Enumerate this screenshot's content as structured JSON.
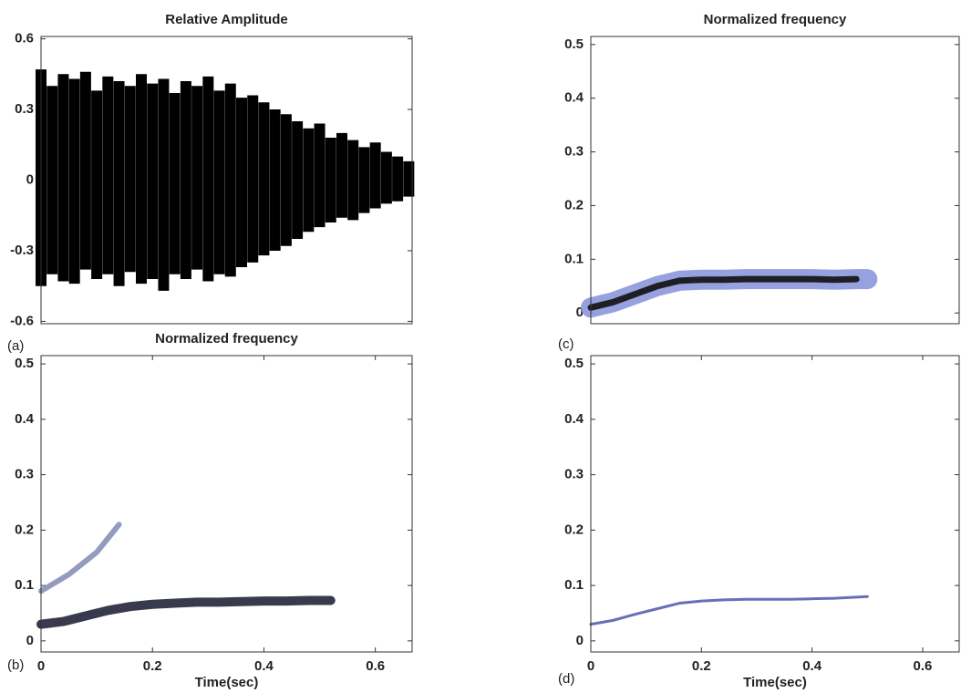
{
  "chart_data": [
    {
      "type": "envelope",
      "title": "Relative Amplitude",
      "panel_label": "(a)",
      "color": "#000000",
      "xlim": [
        0,
        0.666
      ],
      "ylim": [
        -0.61,
        0.61
      ],
      "yticks": [
        0.6,
        0.3,
        0,
        -0.3,
        -0.6
      ],
      "x": [
        0,
        0.02,
        0.04,
        0.06,
        0.08,
        0.1,
        0.12,
        0.14,
        0.16,
        0.18,
        0.2,
        0.22,
        0.24,
        0.26,
        0.28,
        0.3,
        0.32,
        0.34,
        0.36,
        0.38,
        0.4,
        0.42,
        0.44,
        0.46,
        0.48,
        0.5,
        0.52,
        0.54,
        0.56,
        0.58,
        0.6,
        0.62,
        0.64,
        0.66
      ],
      "high": [
        0.47,
        0.4,
        0.45,
        0.43,
        0.46,
        0.38,
        0.44,
        0.42,
        0.4,
        0.45,
        0.41,
        0.43,
        0.37,
        0.42,
        0.4,
        0.44,
        0.38,
        0.41,
        0.35,
        0.36,
        0.33,
        0.3,
        0.28,
        0.25,
        0.22,
        0.24,
        0.18,
        0.2,
        0.17,
        0.14,
        0.16,
        0.12,
        0.1,
        0.08
      ],
      "low": [
        -0.45,
        -0.4,
        -0.43,
        -0.44,
        -0.38,
        -0.42,
        -0.4,
        -0.45,
        -0.39,
        -0.44,
        -0.42,
        -0.47,
        -0.4,
        -0.42,
        -0.38,
        -0.43,
        -0.4,
        -0.41,
        -0.37,
        -0.35,
        -0.32,
        -0.3,
        -0.28,
        -0.25,
        -0.22,
        -0.2,
        -0.18,
        -0.16,
        -0.17,
        -0.14,
        -0.12,
        -0.1,
        -0.09,
        -0.07
      ]
    },
    {
      "type": "ridge",
      "title": "Normalized frequency",
      "panel_label": "(b)",
      "xlabel": "Time(sec)",
      "xlim": [
        0,
        0.666
      ],
      "ylim": [
        -0.02,
        0.515
      ],
      "xticks": [
        0,
        0.2,
        0.4,
        0.6
      ],
      "yticks": [
        0,
        0.1,
        0.2,
        0.3,
        0.4,
        0.5
      ],
      "series": [
        {
          "color": "#23253a",
          "width": 10,
          "x": [
            0,
            0.04,
            0.08,
            0.12,
            0.16,
            0.2,
            0.24,
            0.28,
            0.32,
            0.36,
            0.4,
            0.44,
            0.48,
            0.52
          ],
          "values": [
            0.03,
            0.035,
            0.045,
            0.055,
            0.062,
            0.066,
            0.068,
            0.07,
            0.07,
            0.071,
            0.072,
            0.072,
            0.073,
            0.073
          ]
        },
        {
          "color": "#8a90b8",
          "width": 6,
          "x": [
            0,
            0.05,
            0.1,
            0.14
          ],
          "values": [
            0.09,
            0.12,
            0.16,
            0.21
          ]
        }
      ]
    },
    {
      "type": "ridge",
      "title": "Normalized frequency",
      "panel_label": "(c)",
      "xlim": [
        0,
        0.666
      ],
      "ylim": [
        -0.02,
        0.515
      ],
      "yticks": [
        0,
        0.1,
        0.2,
        0.3,
        0.4,
        0.5
      ],
      "series": [
        {
          "color": "#8d97dc",
          "width": 22,
          "x": [
            0,
            0.04,
            0.08,
            0.12,
            0.16,
            0.2,
            0.24,
            0.28,
            0.32,
            0.36,
            0.4,
            0.44,
            0.48,
            0.5
          ],
          "values": [
            0.01,
            0.02,
            0.035,
            0.05,
            0.06,
            0.062,
            0.062,
            0.063,
            0.063,
            0.063,
            0.063,
            0.062,
            0.063,
            0.063
          ]
        },
        {
          "color": "#111111",
          "width": 7,
          "x": [
            0,
            0.04,
            0.08,
            0.12,
            0.16,
            0.2,
            0.24,
            0.28,
            0.32,
            0.36,
            0.4,
            0.44,
            0.48
          ],
          "values": [
            0.01,
            0.02,
            0.035,
            0.05,
            0.06,
            0.062,
            0.062,
            0.063,
            0.063,
            0.063,
            0.063,
            0.062,
            0.063
          ]
        }
      ]
    },
    {
      "type": "ridge",
      "panel_label": "(d)",
      "xlabel": "Time(sec)",
      "xlim": [
        0,
        0.666
      ],
      "ylim": [
        -0.02,
        0.515
      ],
      "xticks": [
        0,
        0.2,
        0.4,
        0.6
      ],
      "yticks": [
        0,
        0.1,
        0.2,
        0.3,
        0.4,
        0.5
      ],
      "series": [
        {
          "color": "#5560b0",
          "width": 3,
          "x": [
            0,
            0.04,
            0.08,
            0.12,
            0.16,
            0.2,
            0.24,
            0.28,
            0.32,
            0.36,
            0.4,
            0.44,
            0.48,
            0.5
          ],
          "values": [
            0.03,
            0.037,
            0.048,
            0.058,
            0.068,
            0.072,
            0.074,
            0.075,
            0.075,
            0.075,
            0.076,
            0.077,
            0.079,
            0.08
          ]
        }
      ]
    }
  ]
}
